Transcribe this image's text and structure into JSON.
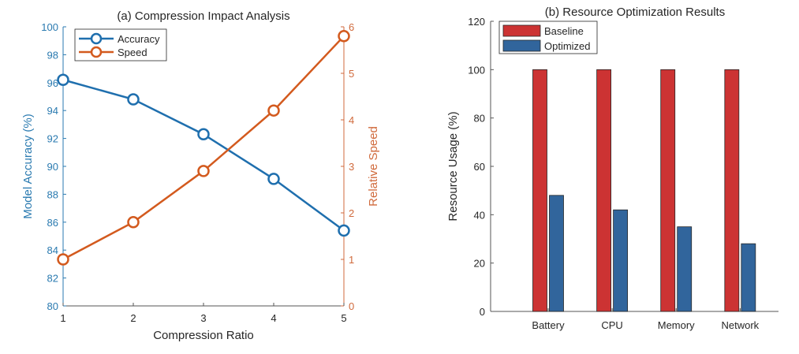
{
  "chart_data": [
    {
      "type": "line",
      "title": "(a) Compression Impact Analysis",
      "xlabel": "Compression Ratio",
      "ylabel": "Model Accuracy (%)",
      "ylabel_right": "Relative Speed",
      "x": [
        1,
        2,
        3,
        4,
        5
      ],
      "xlim": [
        1,
        5
      ],
      "xticks": [
        "1",
        "2",
        "3",
        "4",
        "5"
      ],
      "ylim": [
        80,
        100
      ],
      "yticks": [
        "80",
        "82",
        "84",
        "86",
        "88",
        "90",
        "92",
        "94",
        "96",
        "98",
        "100"
      ],
      "ylim_right": [
        0,
        6
      ],
      "yticks_right": [
        "0",
        "1",
        "2",
        "3",
        "4",
        "5",
        "6"
      ],
      "grid": false,
      "legend_position": "top-left",
      "series": [
        {
          "name": "Accuracy",
          "axis": "left",
          "color": "#1f6fae",
          "values": [
            96.2,
            94.8,
            92.3,
            89.1,
            85.4
          ]
        },
        {
          "name": "Speed",
          "axis": "right",
          "color": "#d35a1e",
          "values": [
            1.0,
            1.8,
            2.9,
            4.2,
            5.8
          ]
        }
      ]
    },
    {
      "type": "bar",
      "title": "(b) Resource Optimization Results",
      "xlabel": "",
      "ylabel": "Resource Usage (%)",
      "categories": [
        "Battery",
        "CPU",
        "Memory",
        "Network"
      ],
      "ylim": [
        0,
        120
      ],
      "yticks": [
        "0",
        "20",
        "40",
        "60",
        "80",
        "100",
        "120"
      ],
      "grid": false,
      "legend_position": "top-left",
      "series": [
        {
          "name": "Baseline",
          "color": "#cc3333",
          "values": [
            100,
            100,
            100,
            100
          ]
        },
        {
          "name": "Optimized",
          "color": "#31659c",
          "values": [
            48,
            42,
            35,
            28
          ]
        }
      ]
    }
  ],
  "colors": {
    "axis_left": "#2a7ab0",
    "axis_right": "#d06a3c",
    "axis_neutral": "#555555",
    "text": "#262626"
  }
}
